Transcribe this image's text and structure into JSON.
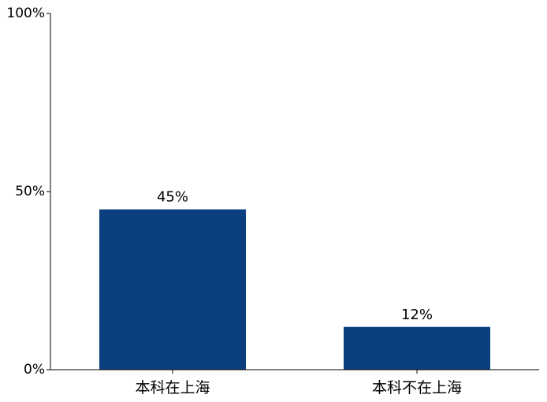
{
  "chart_data": {
    "type": "bar",
    "categories": [
      "本科在上海",
      "本科不在上海"
    ],
    "values": [
      45,
      12
    ],
    "data_labels": [
      "45%",
      "12%"
    ],
    "title": "",
    "xlabel": "",
    "ylabel": "",
    "ylim": [
      0,
      100
    ],
    "yticks": [
      {
        "value": 0,
        "label": "0%"
      },
      {
        "value": 50,
        "label": "50%"
      },
      {
        "value": 100,
        "label": "100%"
      }
    ],
    "bar_color": "#0b3f80",
    "grid": false,
    "legend": "none"
  }
}
